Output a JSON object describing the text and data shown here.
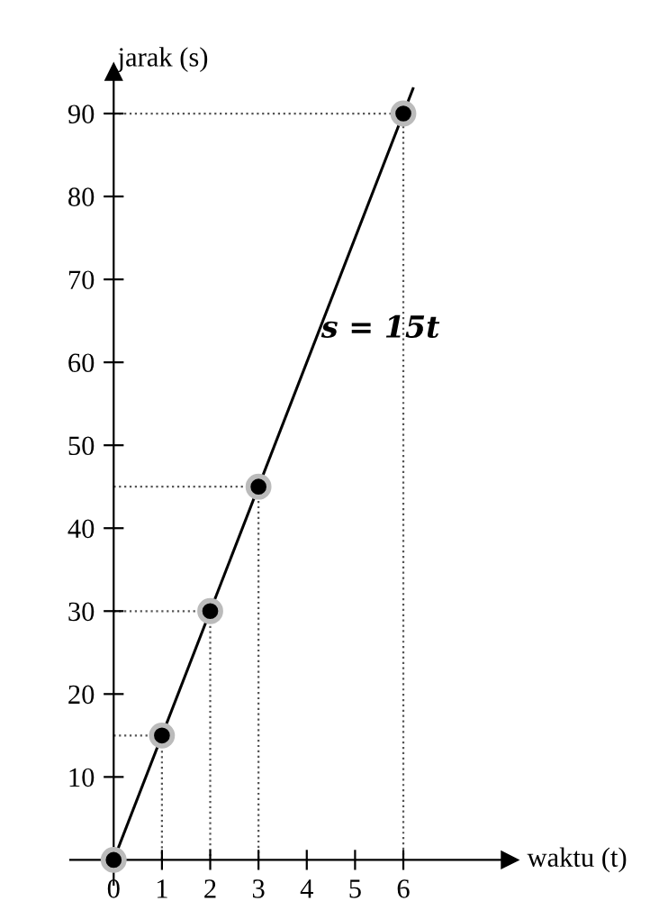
{
  "chart_data": {
    "type": "line",
    "xlabel": "waktu (t)",
    "ylabel": "jarak (s)",
    "xlim": [
      -0.9,
      8.2
    ],
    "ylim": [
      -3,
      95
    ],
    "xticks": [
      {
        "value": 0,
        "label": "0"
      },
      1,
      2,
      3,
      4,
      5,
      6
    ],
    "yticks": [
      10,
      20,
      30,
      40,
      50,
      60,
      70,
      80,
      90
    ],
    "grid": false,
    "series": [
      {
        "color": "#555555",
        "x": [
          0,
          1,
          1
        ],
        "values": [
          15,
          15,
          0
        ],
        "marker": "none",
        "line_style": "dotted"
      },
      {
        "color": "#555555",
        "x": [
          0,
          2,
          2
        ],
        "values": [
          30,
          30,
          0
        ],
        "marker": "none",
        "line_style": "dotted"
      },
      {
        "color": "#555555",
        "x": [
          0,
          3,
          3
        ],
        "values": [
          45,
          45,
          0
        ],
        "marker": "none",
        "line_style": "dotted"
      },
      {
        "color": "#555555",
        "x": [
          0,
          6,
          6
        ],
        "values": [
          90,
          90,
          0
        ],
        "marker": "none",
        "line_style": "dotted"
      },
      {
        "color": "#000000",
        "x": [
          0,
          6.2
        ],
        "values": [
          0,
          93
        ],
        "marker": "none",
        "line_style": "solid"
      },
      {
        "type": "scatter",
        "color": "#000000",
        "x": [
          0,
          1,
          2,
          3,
          6
        ],
        "values": [
          0,
          15,
          30,
          45,
          90
        ],
        "marker": "circle"
      }
    ],
    "annotations": [
      {
        "text": "s = 15t",
        "x": 4.3,
        "y": 63
      }
    ]
  }
}
